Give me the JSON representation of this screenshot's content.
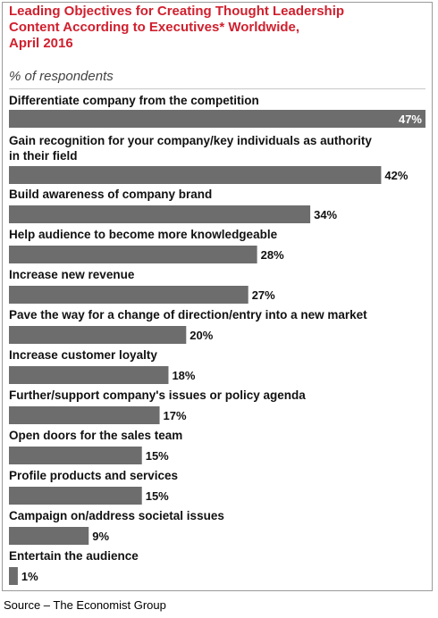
{
  "chart_data": {
    "type": "bar",
    "orientation": "horizontal",
    "title": "Leading Objectives for Creating Thought Leadership\nContent According to Executives* Worldwide,\nApril 2016",
    "subtitle": "% of respondents",
    "categories": [
      "Differentiate company from the competition",
      "Gain recognition for your company/key individuals as authority\nin their field",
      "Build awareness of company brand",
      "Help audience to become more knowledgeable",
      "Increase new revenue",
      "Pave the way for a change of direction/entry into a new market",
      "Increase customer loyalty",
      "Further/support company's issues or policy agenda",
      "Open doors for the sales team",
      "Profile products and services",
      "Campaign on/address societal issues",
      "Entertain the audience"
    ],
    "values": [
      47,
      42,
      34,
      28,
      27,
      20,
      18,
      17,
      15,
      15,
      9,
      1
    ],
    "value_labels": [
      "47%",
      "42%",
      "34%",
      "28%",
      "27%",
      "20%",
      "18%",
      "17%",
      "15%",
      "15%",
      "9%",
      "1%"
    ],
    "xlim": [
      0,
      47
    ],
    "grid": false,
    "bar_color": "#6d6d6d",
    "title_color": "#d0202e"
  },
  "source": "Source – The Economist Group"
}
